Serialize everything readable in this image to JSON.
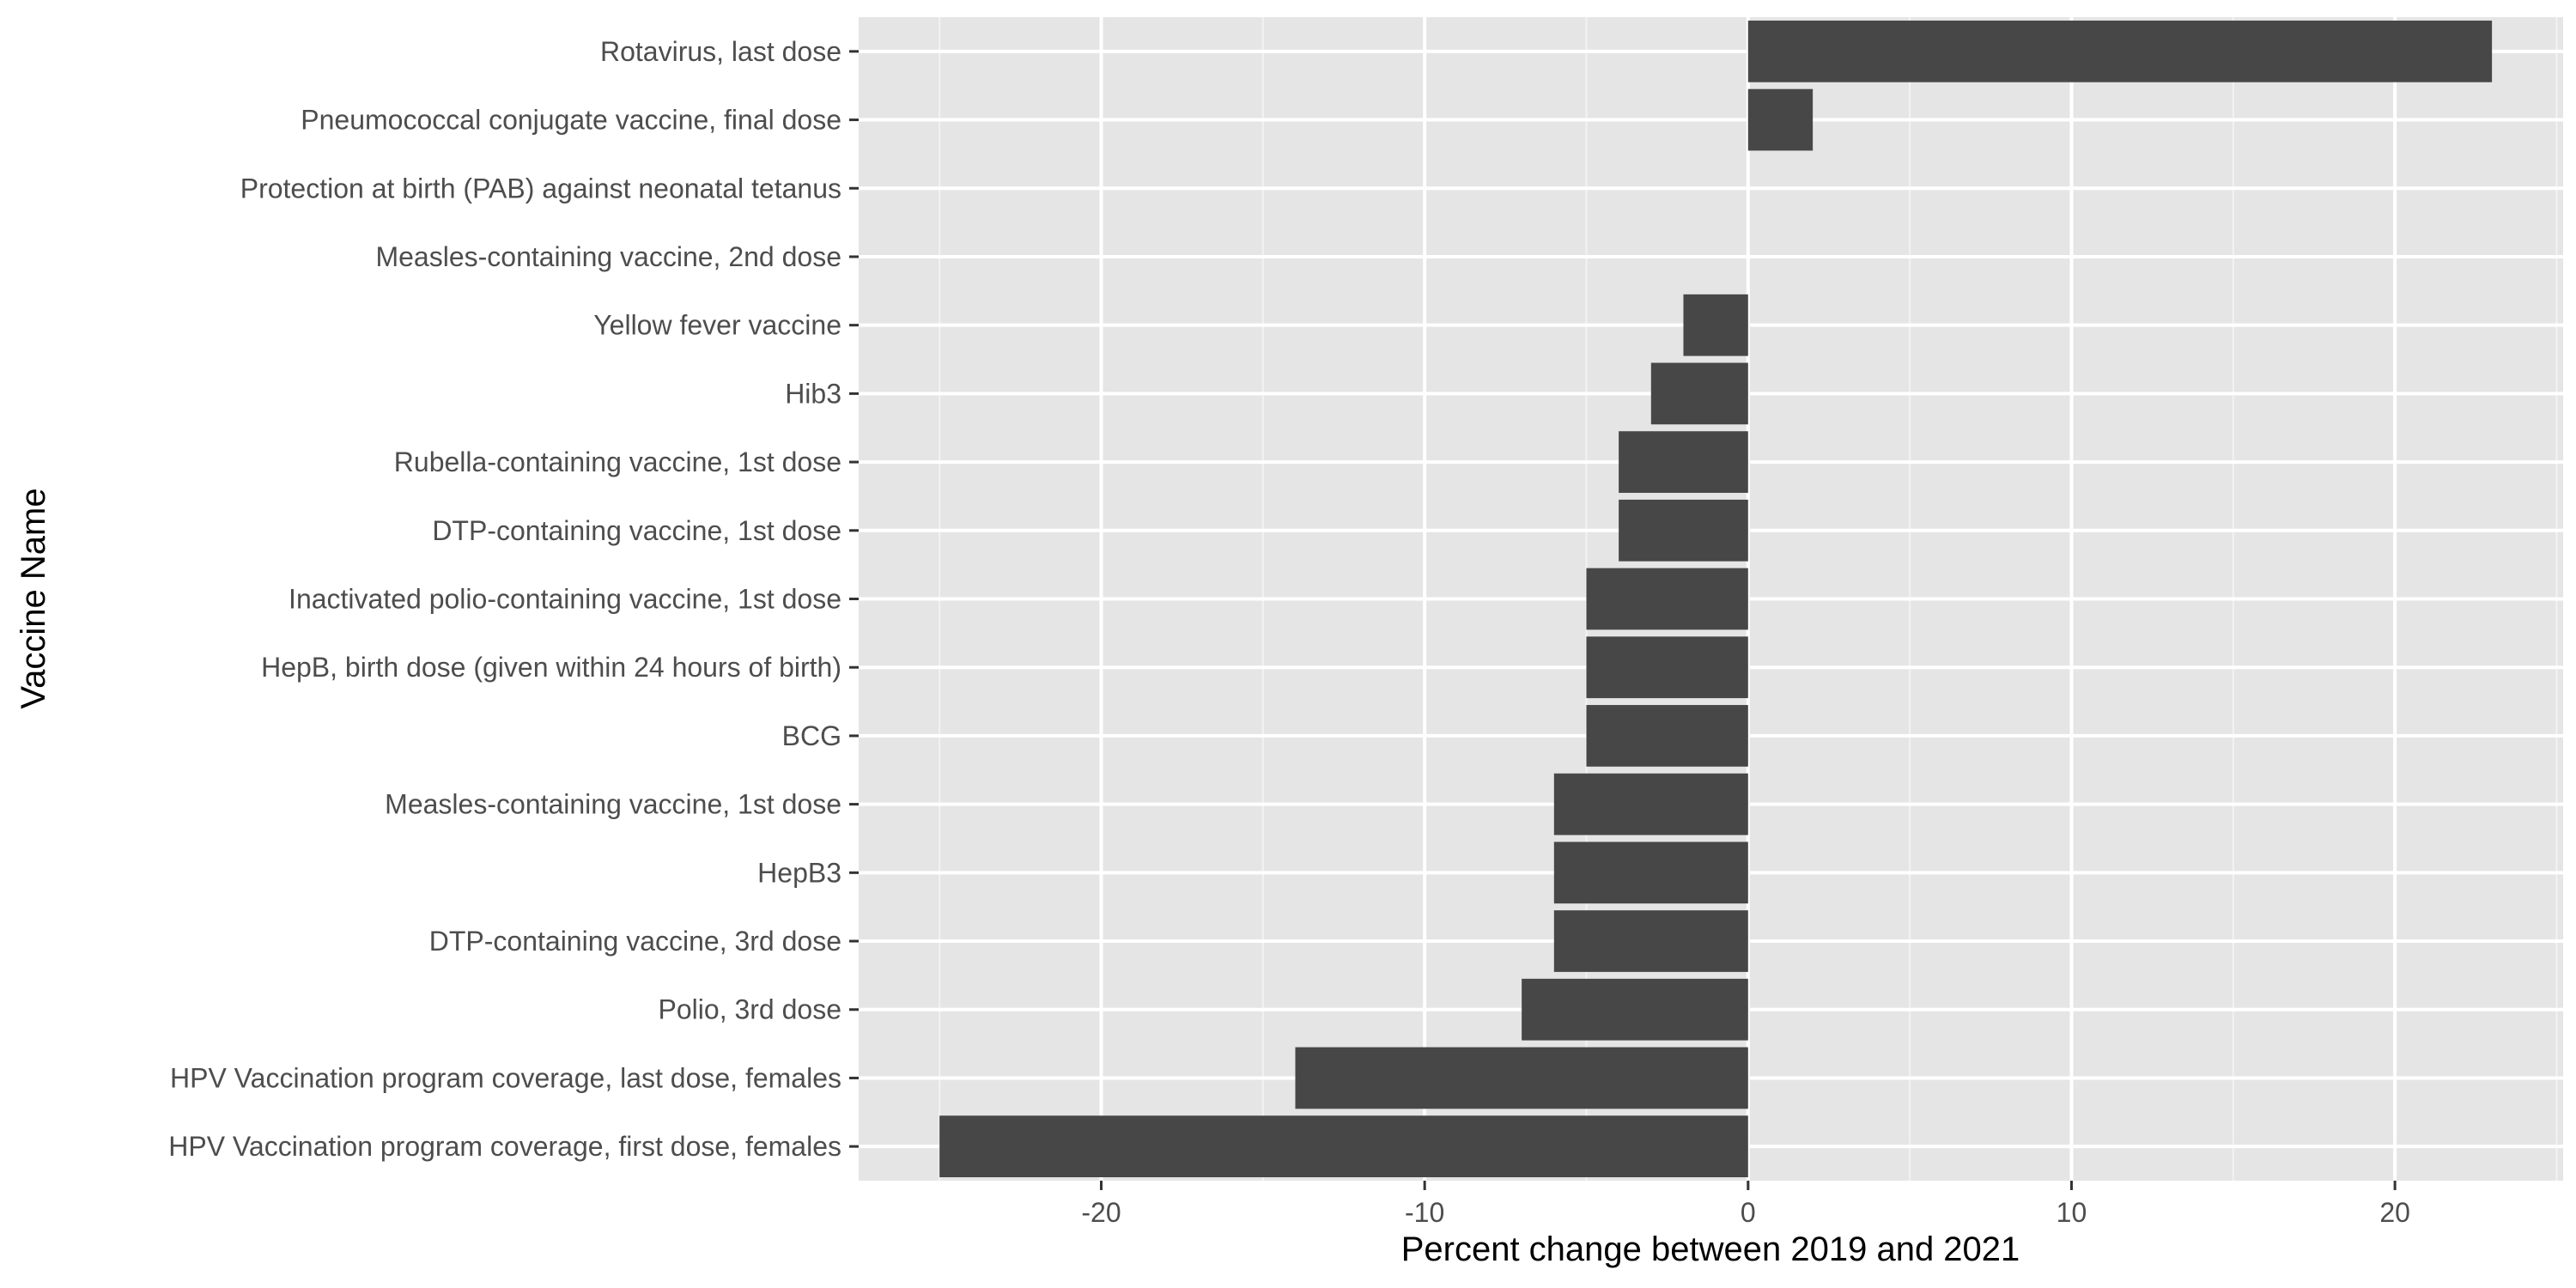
{
  "chart_data": {
    "type": "bar",
    "orientation": "horizontal",
    "title": "",
    "xlabel": "Percent change between 2019 and 2021",
    "ylabel": "Vaccine Name",
    "xlim": [
      -27.5,
      25.2
    ],
    "x_ticks": [
      -20,
      -10,
      0,
      10,
      20
    ],
    "x_tick_labels": [
      "-20",
      "-10",
      "0",
      "10",
      "20"
    ],
    "grid": true,
    "legend": "none",
    "categories": [
      "Rotavirus, last dose",
      "Pneumococcal conjugate vaccine, final dose",
      "Protection at birth (PAB) against neonatal tetanus",
      "Measles-containing vaccine, 2nd dose",
      "Yellow fever vaccine",
      "Hib3",
      "Rubella-containing vaccine, 1st dose",
      "DTP-containing vaccine, 1st dose",
      "Inactivated polio-containing vaccine, 1st dose",
      "HepB, birth dose (given within 24 hours of birth)",
      "BCG",
      "Measles-containing vaccine, 1st dose",
      "HepB3",
      "DTP-containing vaccine, 3rd dose",
      "Polio, 3rd dose",
      "HPV Vaccination program coverage, last dose, females",
      "HPV Vaccination program coverage, first dose, females"
    ],
    "values": [
      23,
      2,
      0,
      0,
      -2,
      -3,
      -4,
      -4,
      -5,
      -5,
      -5,
      -6,
      -6,
      -6,
      -7,
      -14,
      -25
    ],
    "colors": {
      "bar": "#474747",
      "panel": "#e5e5e5",
      "grid_major": "#ffffff",
      "grid_minor": "#f2f2f2",
      "tick_text": "#4d4d4d",
      "tick_mark": "#333333",
      "axis_title": "#000000"
    }
  }
}
